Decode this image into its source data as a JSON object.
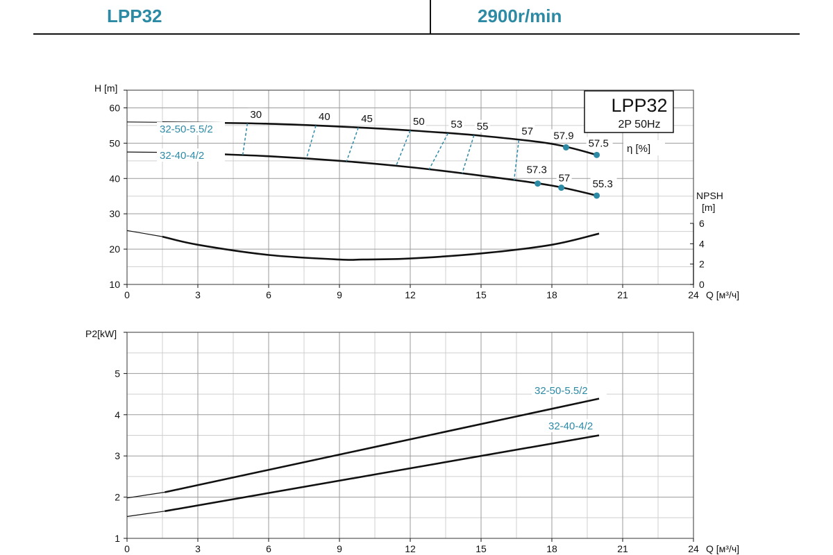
{
  "header": {
    "model": "LPP32",
    "speed": "2900r/min"
  },
  "colors": {
    "accent": "#2d8aa5",
    "curve": "#111111",
    "grid": "#9a9a9a",
    "grid_minor": "#cfcfcf"
  },
  "chart_data": [
    {
      "type": "line",
      "title": "LPP32",
      "subtitle": "2P  50Hz",
      "xlabel": "Q [м³/ч]",
      "ylabel": "H [m]",
      "y2label": "NPSH [m]",
      "efficiency_label": "η [%]",
      "xlim": [
        0,
        24
      ],
      "ylim": [
        10,
        65
      ],
      "y2lim": [
        0,
        6
      ],
      "xticks": [
        "0",
        "3",
        "6",
        "9",
        "12",
        "15",
        "18",
        "21",
        "24"
      ],
      "yticks": [
        "10",
        "20",
        "30",
        "40",
        "50",
        "60"
      ],
      "y2ticks": [
        "0",
        "2",
        "4",
        "6"
      ],
      "grid": true,
      "series": [
        {
          "name": "32-50-5.5/2",
          "x": [
            0,
            1.5,
            3,
            6,
            9,
            12,
            15,
            18,
            20
          ],
          "y": [
            56,
            55.9,
            55.8,
            55.5,
            54.7,
            53.6,
            52.1,
            49.8,
            46.5
          ]
        },
        {
          "name": "32-40-4/2",
          "x": [
            0,
            1.5,
            3,
            6,
            9,
            12,
            15,
            18,
            20
          ],
          "y": [
            47.5,
            47.4,
            47.1,
            46.3,
            45.0,
            43.2,
            40.8,
            38.0,
            35.0
          ]
        },
        {
          "name": "NPSH",
          "axis": "y2",
          "x": [
            0,
            1.5,
            3,
            6,
            9,
            10,
            12,
            15,
            18,
            20
          ],
          "y": [
            5.3,
            4.7,
            3.9,
            2.9,
            2.45,
            2.45,
            2.55,
            3.05,
            3.9,
            5.0
          ]
        }
      ],
      "efficiency_lines": [
        {
          "label": "30",
          "x_top": 5.1,
          "x_bottom": 4.9
        },
        {
          "label": "40",
          "x_top": 8.0,
          "x_bottom": 7.6
        },
        {
          "label": "45",
          "x_top": 9.8,
          "x_bottom": 9.3
        },
        {
          "label": "50",
          "x_top": 12.0,
          "x_bottom": 11.4
        },
        {
          "label": "53",
          "x_top": 13.6,
          "x_bottom": 12.8
        },
        {
          "label": "55",
          "x_top": 14.7,
          "x_bottom": 14.2
        },
        {
          "label": "57",
          "x_top": 16.6,
          "x_bottom": 16.4
        }
      ],
      "points": [
        {
          "label": "57.9",
          "x": 18.6,
          "series": "32-50-5.5/2"
        },
        {
          "label": "57.5",
          "x": 19.9,
          "series": "32-50-5.5/2"
        },
        {
          "label": "57.3",
          "x": 17.4,
          "series": "32-40-4/2"
        },
        {
          "label": "57",
          "x": 18.4,
          "series": "32-40-4/2"
        },
        {
          "label": "55.3",
          "x": 19.9,
          "series": "32-40-4/2"
        }
      ]
    },
    {
      "type": "line",
      "xlabel": "Q [м³/ч]",
      "ylabel": "P2[kW]",
      "xlim": [
        0,
        24
      ],
      "ylim": [
        1,
        6
      ],
      "xticks": [
        "0",
        "3",
        "6",
        "9",
        "12",
        "15",
        "18",
        "21",
        "24"
      ],
      "yticks": [
        "1",
        "2",
        "3",
        "4",
        "5"
      ],
      "grid": true,
      "series": [
        {
          "name": "32-50-5.5/2",
          "x": [
            0,
            1.6,
            20
          ],
          "y": [
            1.98,
            2.12,
            4.39
          ]
        },
        {
          "name": "32-40-4/2",
          "x": [
            0,
            1.6,
            20
          ],
          "y": [
            1.53,
            1.66,
            3.5
          ]
        }
      ]
    }
  ]
}
